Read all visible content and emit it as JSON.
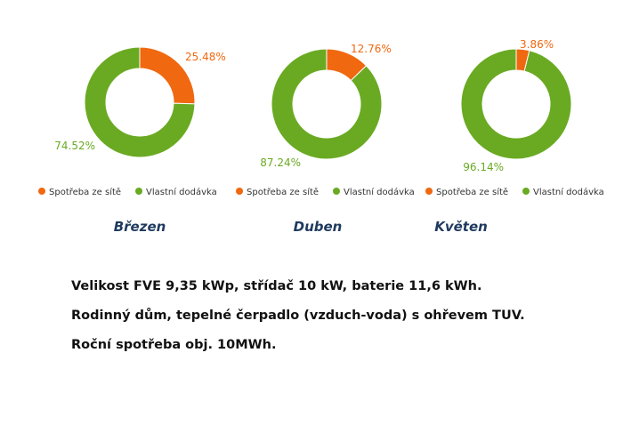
{
  "colors": {
    "spotreba": "#f06810",
    "vlastni": "#6aaa22"
  },
  "chart_data": [
    {
      "type": "pie",
      "title": "",
      "categories": [
        "Spotřeba ze sítě",
        "Vlastní dodávka"
      ],
      "values": [
        25.48,
        74.52
      ],
      "labels": [
        "25.48%",
        "74.52%"
      ],
      "legend": [
        "Spotřeba ze sítě",
        "Vlastní dodávka"
      ]
    },
    {
      "type": "pie",
      "title": "",
      "categories": [
        "Spotřeba ze sítě",
        "Vlastní dodávka"
      ],
      "values": [
        12.76,
        87.24
      ],
      "labels": [
        "12.76%",
        "87.24%"
      ],
      "legend": [
        "Spotřeba ze sítě",
        "Vlastní dodávka"
      ]
    },
    {
      "type": "pie",
      "title": "",
      "categories": [
        "Spotřeba ze sítě",
        "Vlastní dodávka"
      ],
      "values": [
        3.86,
        96.14
      ],
      "labels": [
        "3.86%",
        "96.14%"
      ],
      "legend": [
        "Spotřeba ze sítě",
        "Vlastní dodávka"
      ]
    }
  ],
  "months": [
    "Březen",
    "Duben",
    "Květen"
  ],
  "description": [
    "Velikost FVE 9,35 kWp, střídač 10 kW, baterie 11,6 kWh.",
    "Rodinný dům, tepelné čerpadlo (vzduch-voda) s ohřevem TUV.",
    "Roční spotřeba obj. 10MWh."
  ]
}
